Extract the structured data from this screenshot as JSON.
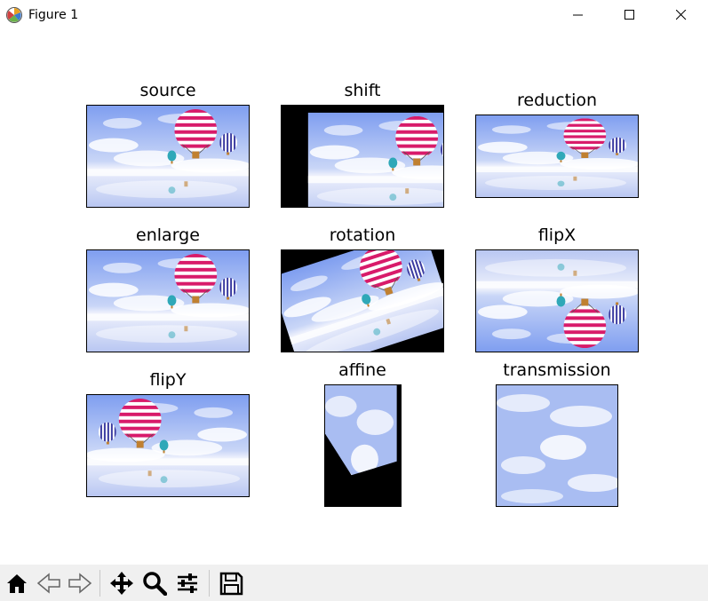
{
  "window": {
    "title": "Figure 1"
  },
  "subplots": [
    {
      "title": "source"
    },
    {
      "title": "shift"
    },
    {
      "title": "reduction"
    },
    {
      "title": "enlarge"
    },
    {
      "title": "rotation"
    },
    {
      "title": "flipX"
    },
    {
      "title": "flipY"
    },
    {
      "title": "affine"
    },
    {
      "title": "transmission"
    }
  ],
  "toolbar": {
    "buttons": [
      "home-icon",
      "back-icon",
      "forward-icon",
      "pan-icon",
      "zoom-icon",
      "configure-subplots-icon",
      "save-icon"
    ]
  },
  "colors": {
    "sky": "#8aa8f0",
    "balloon_pink": "#d81b6a",
    "balloon_blue": "#3a3aa0",
    "toolbar_bg": "#f0f0f0"
  }
}
